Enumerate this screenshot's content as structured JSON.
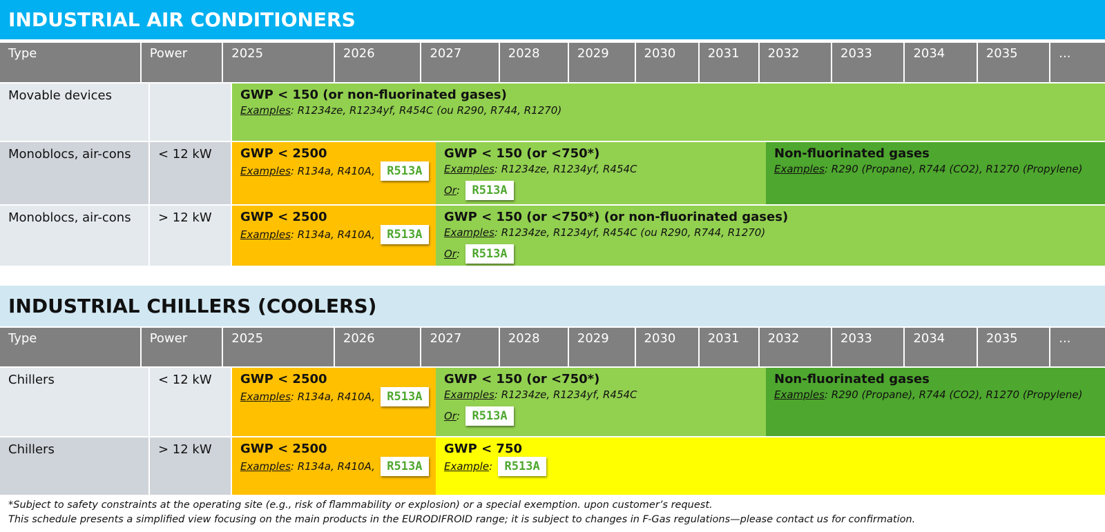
{
  "colors": {
    "title_blue": "#00b0f0",
    "title_light": "#d1e8f3",
    "header_gray": "#808080",
    "orange": "#ffc000",
    "light_green": "#92d050",
    "dark_green": "#4ea72e",
    "yellow": "#ffff00"
  },
  "headers": {
    "type": "Type",
    "power": "Power",
    "years": [
      "2025",
      "2026",
      "2027",
      "2028",
      "2029",
      "2030",
      "2031",
      "2032",
      "2033",
      "2034",
      "2035",
      "..."
    ]
  },
  "section1": {
    "title": "INDUSTRIAL AIR CONDITIONERS",
    "rows": [
      {
        "type": "Movable devices",
        "power": "",
        "bands": [
          {
            "title": "GWP < 150 (or non-fluorinated gases)",
            "ex_label": "Examples",
            "ex_text": ": R1234ze, R1234yf, R454C (ou R290, R744, R1270)"
          }
        ]
      },
      {
        "type": "Monoblocs, air-cons",
        "power": "< 12 kW",
        "bands": [
          {
            "title": "GWP < 2500",
            "ex_label": "Examples",
            "ex_text": ": R134a, R410A,",
            "badge": "R513A"
          },
          {
            "title": "GWP < 150 (or <750*)",
            "ex_label": "Examples",
            "ex_text": ": R1234ze, R1234yf, R454C",
            "or_label": "Or",
            "or_text": ":",
            "badge": "R513A"
          },
          {
            "title": "Non-fluorinated gases",
            "ex_label": "Examples",
            "ex_text": ": R290 (Propane), R744 (CO2), R1270 (Propylene)"
          }
        ]
      },
      {
        "type": "Monoblocs, air-cons",
        "power": "> 12 kW",
        "bands": [
          {
            "title": "GWP < 2500",
            "ex_label": "Examples",
            "ex_text": ": R134a, R410A,",
            "badge": "R513A"
          },
          {
            "title": "GWP < 150 (or <750*) (or non-fluorinated gases)",
            "ex_label": "Examples",
            "ex_text": ": R1234ze, R1234yf, R454C (ou R290, R744, R1270)",
            "or_label": "Or",
            "or_text": ":",
            "badge": "R513A"
          }
        ]
      }
    ]
  },
  "section2": {
    "title": "INDUSTRIAL CHILLERS (COOLERS)",
    "rows": [
      {
        "type": "Chillers",
        "power": "< 12 kW",
        "bands": [
          {
            "title": "GWP < 2500",
            "ex_label": "Examples",
            "ex_text": ": R134a, R410A,",
            "badge": "R513A"
          },
          {
            "title": "GWP < 150 (or <750*)",
            "ex_label": "Examples",
            "ex_text": ": R1234ze, R1234yf, R454C",
            "or_label": "Or",
            "or_text": ":",
            "badge": "R513A"
          },
          {
            "title": "Non-fluorinated gases",
            "ex_label": "Examples",
            "ex_text": ": R290 (Propane), R744 (CO2), R1270 (Propylene)"
          }
        ]
      },
      {
        "type": "Chillers",
        "power": "> 12 kW",
        "bands": [
          {
            "title": "GWP < 2500",
            "ex_label": "Examples",
            "ex_text": ": R134a, R410A,",
            "badge": "R513A"
          },
          {
            "title": "GWP < 750",
            "ex_label": "Example",
            "ex_text": ":",
            "badge": "R513A"
          }
        ]
      }
    ]
  },
  "footnotes": [
    "*Subject to safety constraints at the operating site (e.g., risk of flammability or explosion) or a special exemption. upon customer’s request.",
    "This schedule presents a simplified view focusing on the main products in the EURODIFROID range; it is subject to changes in F-Gas regulations—please contact us for confirmation."
  ]
}
